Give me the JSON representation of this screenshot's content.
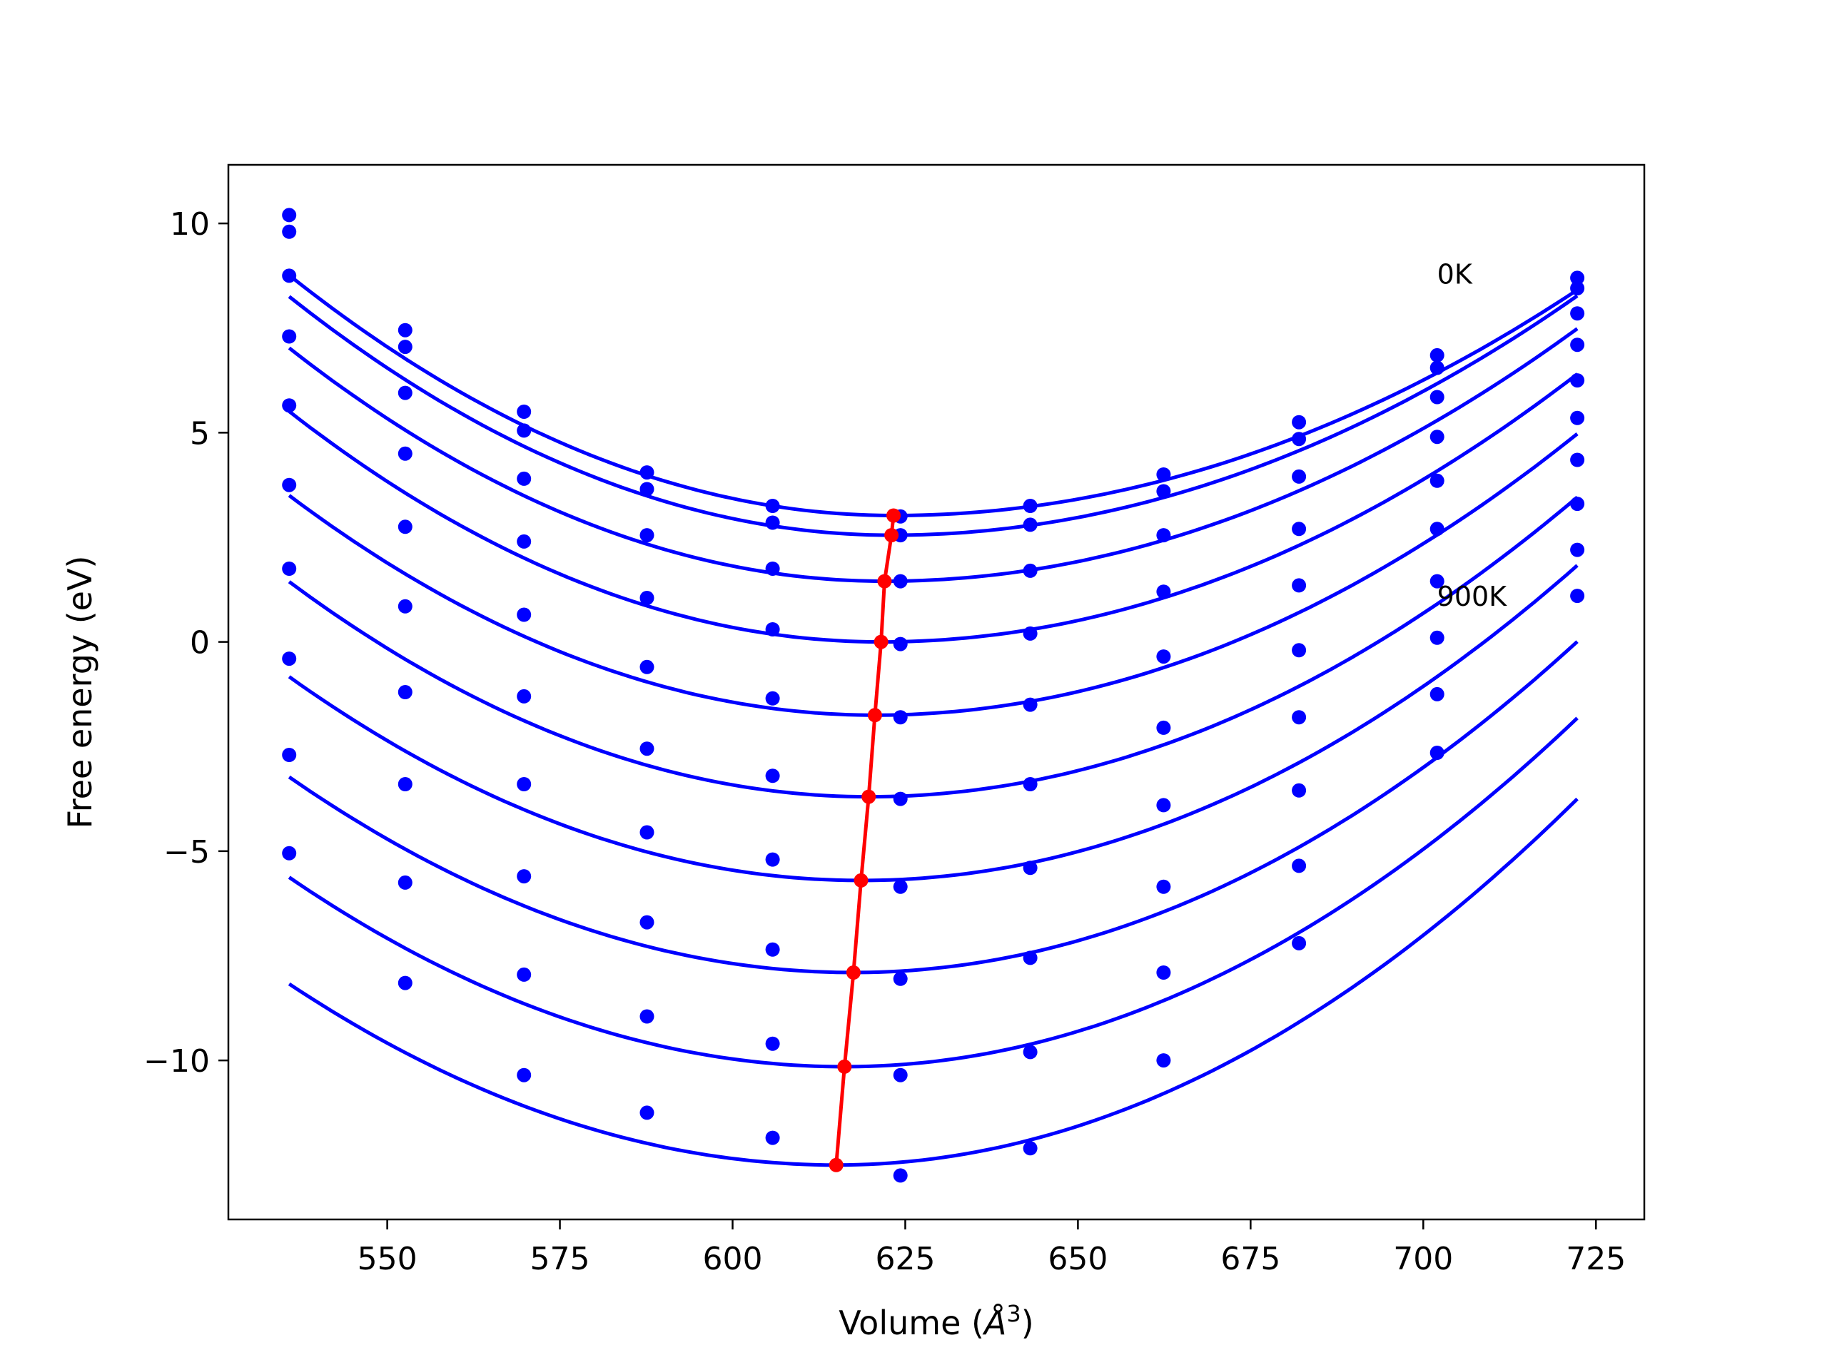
{
  "chart_data": {
    "type": "scatter",
    "title": "",
    "xlabel": "Volume (",
    "xlabel_unit": "Å",
    "xlabel_sup": "3",
    "xlabel_close": ")",
    "ylabel": "Free energy (eV)",
    "xlim": [
      527,
      732
    ],
    "ylim": [
      -13.8,
      11.4
    ],
    "xticks": [
      550,
      575,
      600,
      625,
      650,
      675,
      700,
      725
    ],
    "xtick_labels": [
      "550",
      "575",
      "600",
      "625",
      "650",
      "675",
      "700",
      "725"
    ],
    "yticks": [
      10,
      5,
      0,
      -5,
      -10
    ],
    "ytick_labels": [
      "10",
      "5",
      "0",
      "−5",
      "−10"
    ],
    "grid": false,
    "annotations": [
      {
        "text": "0K",
        "x": 702,
        "y": 8.8
      },
      {
        "text": "900K",
        "x": 702,
        "y": 1.1
      }
    ],
    "colors": {
      "points": "#0000ff",
      "fits": "#0000ff",
      "minima": "#ff0000"
    },
    "x": [
      535.8,
      552.6,
      569.8,
      587.6,
      605.8,
      624.3,
      643.1,
      662.4,
      682.0,
      702.0,
      722.3
    ],
    "series": [
      {
        "values": [
          10.2,
          7.45,
          5.5,
          4.05,
          3.25,
          3.0,
          3.25,
          4.0,
          5.25,
          6.85,
          8.7
        ],
        "fit": {
          "min_v": 623.3,
          "min_f": 3.02,
          "a_left": 0.00075,
          "a_right": 0.00055
        }
      },
      {
        "values": [
          9.8,
          7.05,
          5.05,
          3.65,
          2.85,
          2.55,
          2.8,
          3.6,
          4.85,
          6.55,
          8.45
        ],
        "fit": {
          "min_v": 623.0,
          "min_f": 2.55,
          "a_left": 0.00075,
          "a_right": 0.00058
        }
      },
      {
        "values": [
          8.75,
          5.95,
          3.9,
          2.55,
          1.75,
          1.45,
          1.7,
          2.55,
          3.95,
          5.85,
          7.85
        ],
        "fit": {
          "min_v": 622.0,
          "min_f": 1.45,
          "a_left": 0.00075,
          "a_right": 0.0006
        }
      },
      {
        "values": [
          7.3,
          4.5,
          2.4,
          1.05,
          0.3,
          -0.05,
          0.2,
          1.2,
          2.7,
          4.9,
          7.1
        ],
        "fit": {
          "min_v": 621.5,
          "min_f": 0.0,
          "a_left": 0.00075,
          "a_right": 0.00063
        }
      },
      {
        "values": [
          5.65,
          2.75,
          0.65,
          -0.6,
          -1.35,
          -1.8,
          -1.5,
          -0.35,
          1.35,
          3.85,
          6.25
        ],
        "fit": {
          "min_v": 620.6,
          "min_f": -1.75,
          "a_left": 0.00073,
          "a_right": 0.00065
        }
      },
      {
        "values": [
          3.75,
          0.85,
          -1.3,
          -2.55,
          -3.2,
          -3.75,
          -3.4,
          -2.05,
          -0.2,
          2.7,
          5.35
        ],
        "fit": {
          "min_v": 619.7,
          "min_f": -3.7,
          "a_left": 0.00073,
          "a_right": 0.00068
        }
      },
      {
        "values": [
          1.75,
          -1.2,
          -3.4,
          -4.55,
          -5.2,
          -5.85,
          -5.4,
          -3.9,
          -1.8,
          1.45,
          4.35
        ],
        "fit": {
          "min_v": 618.6,
          "min_f": -5.7,
          "a_left": 0.00071,
          "a_right": 0.0007
        }
      },
      {
        "values": [
          -0.4,
          -3.4,
          -5.6,
          -6.7,
          -7.35,
          -8.05,
          -7.55,
          -5.85,
          -3.55,
          0.1,
          3.3
        ],
        "fit": {
          "min_v": 617.5,
          "min_f": -7.9,
          "a_left": 0.0007,
          "a_right": 0.00072
        }
      },
      {
        "values": [
          -2.7,
          -5.75,
          -7.95,
          -8.95,
          -9.6,
          -10.35,
          -9.8,
          -7.9,
          -5.35,
          -1.25,
          2.2
        ],
        "fit": {
          "min_v": 616.2,
          "min_f": -10.15,
          "a_left": 0.0007,
          "a_right": 0.00074
        }
      },
      {
        "values": [
          -5.05,
          -8.15,
          -10.35,
          -11.25,
          -11.85,
          -12.75,
          -12.1,
          -10.0,
          -7.2,
          -2.65,
          1.1
        ],
        "fit": {
          "min_v": 615.0,
          "min_f": -12.5,
          "a_left": 0.00069,
          "a_right": 0.00076
        }
      }
    ],
    "minima": {
      "x": [
        623.3,
        623.0,
        622.0,
        621.5,
        620.6,
        619.7,
        618.6,
        617.5,
        616.2,
        615.0
      ],
      "y": [
        3.02,
        2.55,
        1.45,
        0.0,
        -1.75,
        -3.7,
        -5.7,
        -7.9,
        -10.15,
        -12.5
      ]
    }
  }
}
